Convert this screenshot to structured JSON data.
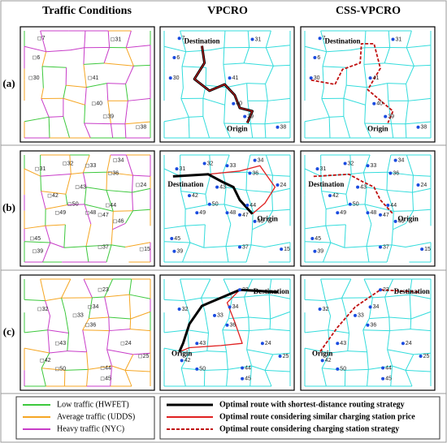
{
  "columns": [
    "Traffic Conditions",
    "VPCRO",
    "CSS-VPCRO"
  ],
  "rows": [
    {
      "label": "(a)",
      "nodes": [
        "7",
        "31",
        "6",
        "30",
        "41",
        "40",
        "39",
        "38"
      ],
      "destination": "Destination",
      "origin": "Origin"
    },
    {
      "label": "(b)",
      "nodes": [
        "31",
        "32",
        "33",
        "34",
        "36",
        "24",
        "43",
        "42",
        "50",
        "49",
        "48",
        "47",
        "46",
        "44",
        "45",
        "15",
        "39",
        "37"
      ],
      "destination": "Destination",
      "origin": "Origin"
    },
    {
      "label": "(c)",
      "nodes": [
        "23",
        "34",
        "32",
        "33",
        "36",
        "43",
        "24",
        "42",
        "25",
        "50",
        "44",
        "45"
      ],
      "destination": "Destination",
      "origin": "Origin"
    }
  ],
  "legend": {
    "traffic": [
      {
        "label": "Low traffic (HWFET)",
        "color": "#3cc83c"
      },
      {
        "label": "Average traffic (UDDS)",
        "color": "#f5a623"
      },
      {
        "label": "Heavy traffic (NYC)",
        "color": "#c83cc8"
      }
    ],
    "routes": [
      {
        "label": "Optimal route with shortest-distance routing strategy",
        "color": "#000000",
        "style": "solid"
      },
      {
        "label": "Optimal route considering similar charging station price",
        "color": "#e02020",
        "style": "solid"
      },
      {
        "label": "Optimal route considering charging station strategy",
        "color": "#c01010",
        "style": "dashed"
      }
    ]
  }
}
